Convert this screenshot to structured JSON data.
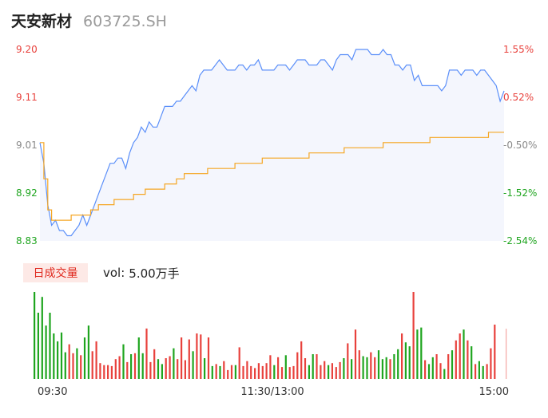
{
  "header": {
    "name": "天安新材",
    "code": "603725.SH"
  },
  "volume_panel": {
    "badge_label": "日成交量",
    "vol_label": "vol:",
    "vol_value": "5.00万手"
  },
  "colors": {
    "price_line": "#5b8ff9",
    "price_fill": "#f4f6fd",
    "avg_line": "#f5a623",
    "up": "#e8413c",
    "down": "#1fa51f",
    "neutral": "#888888"
  },
  "chart_data": {
    "type": "line",
    "subtype": "intraday-timeshare",
    "x_ticks": [
      "09:30",
      "11:30/13:00",
      "15:00"
    ],
    "y_left_ticks": [
      "9.20",
      "9.11",
      "9.01",
      "8.92",
      "8.83"
    ],
    "y_right_ticks": [
      "1.55%",
      "0.52%",
      "-0.50%",
      "-1.52%",
      "-2.54%"
    ],
    "ylim": [
      8.83,
      9.2
    ],
    "prev_close": 9.06,
    "series": [
      {
        "values": [
          9.02,
          8.98,
          8.9,
          8.86,
          8.87,
          8.85,
          8.85,
          8.84,
          8.84,
          8.85,
          8.86,
          8.88,
          8.86,
          8.88,
          8.9,
          8.92,
          8.94,
          8.96,
          8.98,
          8.98,
          8.99,
          8.99,
          8.97,
          9.0,
          9.02,
          9.03,
          9.05,
          9.04,
          9.06,
          9.05,
          9.05,
          9.07,
          9.09,
          9.09,
          9.09,
          9.1,
          9.1,
          9.11,
          9.12,
          9.13,
          9.12,
          9.15,
          9.16,
          9.16,
          9.16,
          9.17,
          9.18,
          9.17,
          9.16,
          9.16,
          9.16,
          9.17,
          9.17,
          9.16,
          9.17,
          9.17,
          9.18,
          9.16,
          9.16,
          9.16,
          9.16,
          9.17,
          9.17,
          9.17,
          9.16,
          9.17,
          9.18,
          9.18,
          9.18,
          9.17,
          9.17,
          9.17,
          9.18,
          9.18,
          9.17,
          9.16,
          9.18,
          9.19,
          9.19,
          9.19,
          9.18,
          9.2,
          9.2,
          9.2,
          9.2,
          9.19,
          9.19,
          9.19,
          9.2,
          9.19,
          9.19,
          9.17,
          9.17,
          9.16,
          9.17,
          9.17,
          9.14,
          9.15,
          9.13,
          9.13,
          9.13,
          9.13,
          9.13,
          9.12,
          9.13,
          9.16,
          9.16,
          9.16,
          9.15,
          9.16,
          9.16,
          9.16,
          9.15,
          9.16,
          9.16,
          9.15,
          9.14,
          9.13,
          9.1,
          9.12
        ]
      },
      {
        "values": [
          9.02,
          8.95,
          8.89,
          8.87,
          8.87,
          8.87,
          8.87,
          8.87,
          8.88,
          8.88,
          8.88,
          8.88,
          8.88,
          8.89,
          8.89,
          8.9,
          8.9,
          8.9,
          8.9,
          8.91,
          8.91,
          8.91,
          8.91,
          8.91,
          8.92,
          8.92,
          8.92,
          8.93,
          8.93,
          8.93,
          8.93,
          8.93,
          8.94,
          8.94,
          8.94,
          8.95,
          8.95,
          8.96,
          8.96,
          8.96,
          8.96,
          8.96,
          8.96,
          8.97,
          8.97,
          8.97,
          8.97,
          8.97,
          8.97,
          8.97,
          8.98,
          8.98,
          8.98,
          8.98,
          8.98,
          8.98,
          8.98,
          8.99,
          8.99,
          8.99,
          8.99,
          8.99,
          8.99,
          8.99,
          8.99,
          8.99,
          8.99,
          8.99,
          8.99,
          9.0,
          9.0,
          9.0,
          9.0,
          9.0,
          9.0,
          9.0,
          9.0,
          9.0,
          9.01,
          9.01,
          9.01,
          9.01,
          9.01,
          9.01,
          9.01,
          9.01,
          9.01,
          9.01,
          9.02,
          9.02,
          9.02,
          9.02,
          9.02,
          9.02,
          9.02,
          9.02,
          9.02,
          9.02,
          9.02,
          9.02,
          9.03,
          9.03,
          9.03,
          9.03,
          9.03,
          9.03,
          9.03,
          9.03,
          9.03,
          9.03,
          9.03,
          9.03,
          9.03,
          9.03,
          9.03,
          9.04,
          9.04,
          9.04,
          9.04,
          9.04
        ]
      }
    ],
    "volume": [
      88,
      67,
      83,
      54,
      67,
      46,
      38,
      47,
      27,
      35,
      26,
      31,
      24,
      42,
      54,
      28,
      38,
      16,
      14,
      14,
      13,
      20,
      23,
      35,
      17,
      25,
      26,
      42,
      26,
      51,
      17,
      30,
      20,
      15,
      21,
      23,
      31,
      20,
      42,
      19,
      40,
      28,
      46,
      45,
      21,
      42,
      13,
      15,
      13,
      18,
      9,
      14,
      14,
      32,
      13,
      18,
      13,
      11,
      16,
      13,
      16,
      24,
      14,
      22,
      12,
      24,
      12,
      13,
      27,
      38,
      21,
      14,
      25,
      25,
      14,
      18,
      14,
      16,
      12,
      17,
      21,
      36,
      20,
      50,
      29,
      23,
      22,
      27,
      22,
      29,
      20,
      22,
      20,
      25,
      30,
      46,
      37,
      33,
      88,
      50,
      52,
      19,
      15,
      22,
      25,
      16,
      10,
      25,
      29,
      39,
      46,
      50,
      39,
      33,
      15,
      18,
      13,
      15,
      31,
      55
    ],
    "volume_colors": [
      "down",
      "down",
      "down",
      "down",
      "down",
      "down",
      "down",
      "down",
      "down",
      "up",
      "up",
      "down",
      "up",
      "down",
      "down",
      "up",
      "up",
      "up",
      "up",
      "up",
      "up",
      "up",
      "up",
      "down",
      "up",
      "down",
      "up",
      "down",
      "down",
      "up",
      "up",
      "up",
      "down",
      "down",
      "up",
      "up",
      "down",
      "up",
      "up",
      "up",
      "up",
      "down",
      "up",
      "up",
      "down",
      "up",
      "down",
      "up",
      "down",
      "up",
      "up",
      "up",
      "down",
      "up",
      "up",
      "up",
      "up",
      "up",
      "up",
      "up",
      "up",
      "up",
      "down",
      "up",
      "up",
      "down",
      "up",
      "up",
      "up",
      "up",
      "up",
      "down",
      "down",
      "up",
      "up",
      "up",
      "down",
      "up",
      "up",
      "up",
      "down",
      "up",
      "down",
      "up",
      "up",
      "down",
      "down",
      "up",
      "up",
      "down",
      "down",
      "down",
      "up",
      "down",
      "down",
      "up",
      "down",
      "down",
      "up",
      "down",
      "down",
      "up",
      "down",
      "down",
      "up",
      "up",
      "down",
      "up",
      "down",
      "up",
      "up",
      "down",
      "up",
      "down",
      "up",
      "down",
      "down",
      "up",
      "up",
      "up"
    ]
  }
}
